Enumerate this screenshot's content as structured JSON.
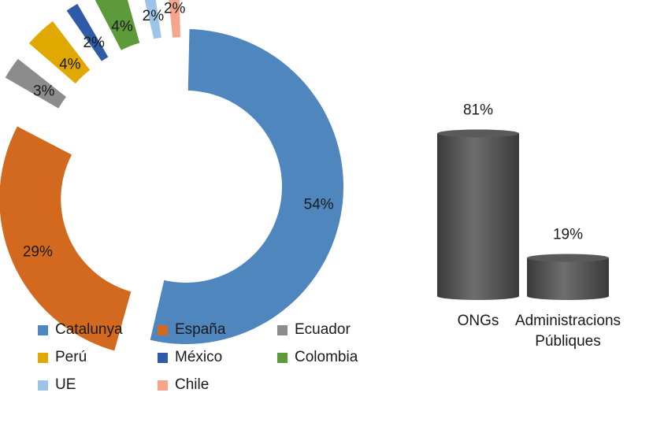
{
  "chart_data": [
    {
      "type": "pie",
      "variant": "exploded-doughnut",
      "categories": [
        "Catalunya",
        "España",
        "Ecuador",
        "Perú",
        "México",
        "Colombia",
        "UE",
        "Chile"
      ],
      "values": [
        54,
        29,
        3,
        4,
        2,
        4,
        2,
        2
      ],
      "labels": [
        "54%",
        "29%",
        "3%",
        "4%",
        "2%",
        "4%",
        "2%",
        "2%"
      ],
      "colors": [
        "#4f86be",
        "#d2691e",
        "#8c8c8c",
        "#e0a800",
        "#2f5aa8",
        "#5d9a3a",
        "#9dc3e6",
        "#f4a68c"
      ],
      "legend_position": "bottom"
    },
    {
      "type": "bar",
      "variant": "3d-cylinder",
      "categories": [
        "ONGs",
        "Administracions Públiques"
      ],
      "category_lines": [
        [
          "ONGs"
        ],
        [
          "Administracions",
          "Públiques"
        ]
      ],
      "values": [
        81,
        19
      ],
      "labels": [
        "81%",
        "19%"
      ],
      "color": "#4d4d4d",
      "ylim": [
        0,
        100
      ]
    }
  ]
}
